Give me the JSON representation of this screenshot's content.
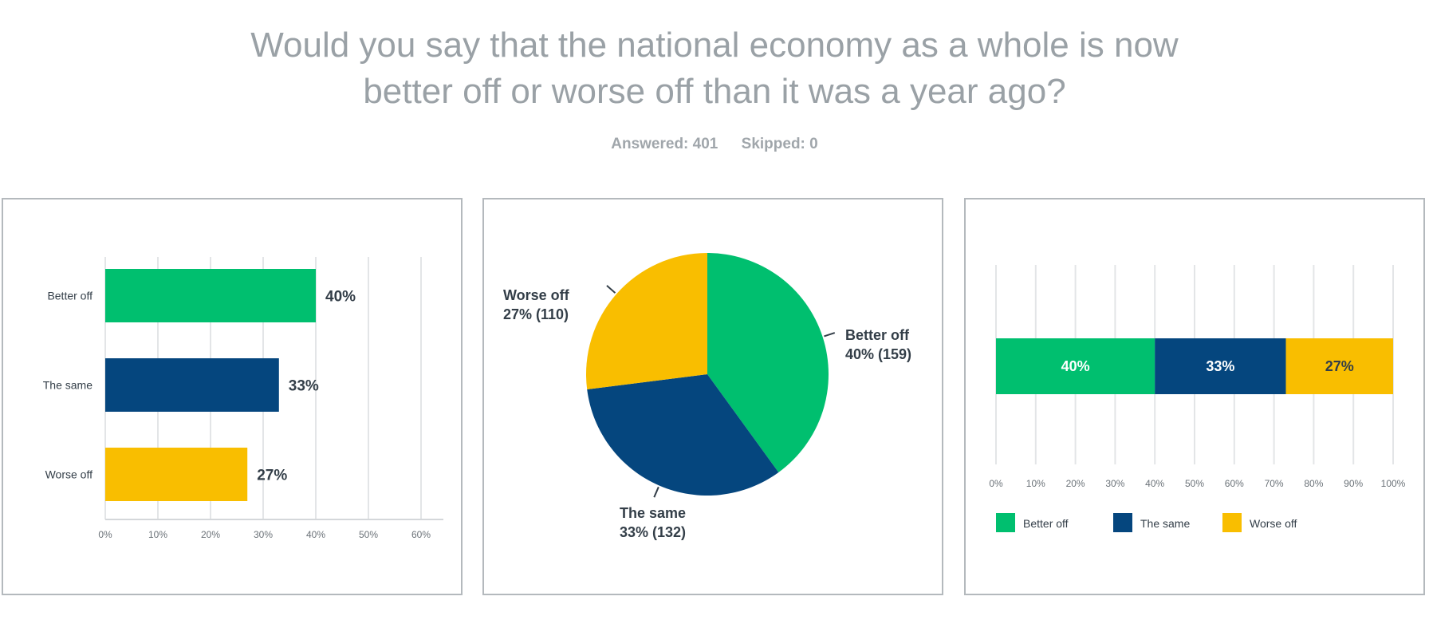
{
  "question": {
    "line1": "Would you say that the national economy as a whole is now",
    "line2": "better off or worse off than it was a year ago?"
  },
  "meta": {
    "answered": "Answered: 401",
    "skipped": "Skipped: 0"
  },
  "colors": {
    "better_off": "#00bf6f",
    "the_same": "#05467e",
    "worse_off": "#f9be00"
  },
  "chart_data": [
    {
      "type": "bar",
      "orientation": "horizontal",
      "categories": [
        "Better off",
        "The same",
        "Worse off"
      ],
      "values": [
        40,
        33,
        27
      ],
      "value_labels": [
        "40%",
        "33%",
        "27%"
      ],
      "xlim": [
        0,
        64
      ],
      "xticks": [
        "0%",
        "10%",
        "20%",
        "30%",
        "40%",
        "50%",
        "60%"
      ],
      "grid": true
    },
    {
      "type": "pie",
      "categories": [
        "Better off",
        "The same",
        "Worse off"
      ],
      "values": [
        40,
        33,
        27
      ],
      "counts": [
        159,
        132,
        110
      ],
      "labels": [
        {
          "name": "Better off",
          "detail": "40% (159)"
        },
        {
          "name": "The same",
          "detail": "33% (132)"
        },
        {
          "name": "Worse off",
          "detail": "27% (110)"
        }
      ]
    },
    {
      "type": "bar",
      "orientation": "horizontal",
      "stacked": true,
      "series": [
        {
          "name": "Better off",
          "values": [
            40
          ],
          "label": "40%"
        },
        {
          "name": "The same",
          "values": [
            33
          ],
          "label": "33%"
        },
        {
          "name": "Worse off",
          "values": [
            27
          ],
          "label": "27%"
        }
      ],
      "xlim": [
        0,
        100
      ],
      "xticks": [
        "0%",
        "10%",
        "20%",
        "30%",
        "40%",
        "50%",
        "60%",
        "70%",
        "80%",
        "90%",
        "100%"
      ],
      "legend": "bottom",
      "grid": true
    }
  ]
}
